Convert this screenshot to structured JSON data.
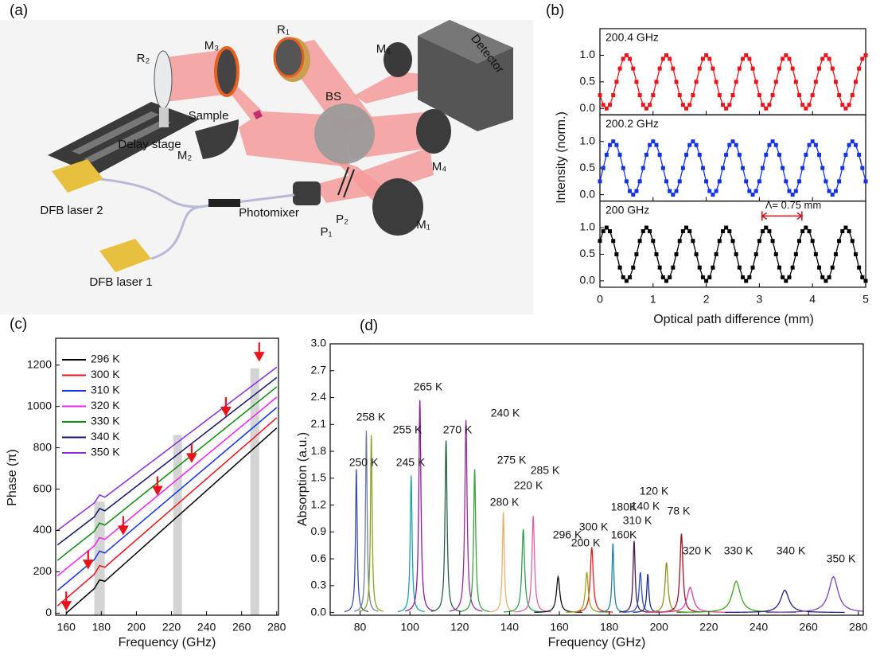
{
  "diagram": {
    "panel_label": "(a)",
    "labels": [
      "R₂",
      "M₃",
      "R₁",
      "M₅",
      "Detector",
      "BS",
      "Sample",
      "Delay stage",
      "M₂",
      "M₄",
      "DFB laser 2",
      "Photomixer",
      "P₁",
      "P₂",
      "M₁",
      "DFB laser 1"
    ]
  },
  "chart_data": [
    {
      "type": "line",
      "panel_label": "(b)",
      "x_label": "Optical path difference (mm)",
      "y_label": "Intensity (norm.)",
      "x": [
        0,
        0.0625,
        0.125,
        0.1875,
        0.25,
        0.3125,
        0.375,
        0.4375,
        0.5,
        0.5625,
        0.625,
        0.6875,
        0.75,
        0.8125,
        0.875,
        0.9375,
        1,
        1.0625,
        1.125,
        1.1875,
        1.25,
        1.3125,
        1.375,
        1.4375,
        1.5,
        1.5625,
        1.625,
        1.6875,
        1.75,
        1.8125,
        1.875,
        1.9375,
        2,
        2.0625,
        2.125,
        2.1875,
        2.25,
        2.3125,
        2.375,
        2.4375,
        2.5,
        2.5625,
        2.625,
        2.6875,
        2.75,
        2.8125,
        2.875,
        2.9375,
        3,
        3.0625,
        3.125,
        3.1875,
        3.25,
        3.3125,
        3.375,
        3.4375,
        3.5,
        3.5625,
        3.625,
        3.6875,
        3.75,
        3.8125,
        3.875,
        3.9375,
        4,
        4.0625,
        4.125,
        4.1875,
        4.25,
        4.3125,
        4.375,
        4.4375,
        4.5,
        4.5625,
        4.625,
        4.6875,
        4.75,
        4.8125,
        4.875,
        4.9375,
        5
      ],
      "xlim": [
        0,
        5
      ],
      "xticks": [
        0,
        1,
        2,
        3,
        4,
        5
      ],
      "ylim": [
        -0.12,
        1.5
      ],
      "yticks": [
        {
          "value": 0,
          "label": "0.0"
        },
        {
          "value": 0.5,
          "label": "0.5"
        },
        {
          "value": 1,
          "label": "1.0"
        }
      ],
      "series": [
        {
          "name": "200.4 GHz",
          "color": "#e8141b",
          "values": [
            0.25,
            0.067,
            0,
            0.067,
            0.25,
            0.5,
            0.75,
            0.933,
            1,
            0.933,
            0.75,
            0.5,
            0.25,
            0.067,
            0,
            0.067,
            0.25,
            0.5,
            0.75,
            0.933,
            1,
            0.933,
            0.75,
            0.5,
            0.25,
            0.067,
            0,
            0.067,
            0.25,
            0.5,
            0.75,
            0.933,
            1,
            0.933,
            0.75,
            0.5,
            0.25,
            0.067,
            0,
            0.067,
            0.25,
            0.5,
            0.75,
            0.933,
            1,
            0.933,
            0.75,
            0.5,
            0.25,
            0.067,
            0,
            0.067,
            0.25,
            0.5,
            0.75,
            0.933,
            1,
            0.933,
            0.75,
            0.5,
            0.25,
            0.067,
            0,
            0.067,
            0.25,
            0.5,
            0.75,
            0.933,
            1,
            0.933,
            0.75,
            0.5,
            0.25,
            0.067,
            0,
            0.067,
            0.25,
            0.5,
            0.75,
            0.933,
            1
          ]
        },
        {
          "name": "200.2 GHz",
          "color": "#1432e6",
          "values": [
            0.25,
            0.5,
            0.75,
            0.933,
            1,
            0.933,
            0.75,
            0.5,
            0.25,
            0.067,
            0,
            0.067,
            0.25,
            0.5,
            0.75,
            0.933,
            1,
            0.933,
            0.75,
            0.5,
            0.25,
            0.067,
            0,
            0.067,
            0.25,
            0.5,
            0.75,
            0.933,
            1,
            0.933,
            0.75,
            0.5,
            0.25,
            0.067,
            0,
            0.067,
            0.25,
            0.5,
            0.75,
            0.933,
            1,
            0.933,
            0.75,
            0.5,
            0.25,
            0.067,
            0,
            0.067,
            0.25,
            0.5,
            0.75,
            0.933,
            1,
            0.933,
            0.75,
            0.5,
            0.25,
            0.067,
            0,
            0.067,
            0.25,
            0.5,
            0.75,
            0.933,
            1,
            0.933,
            0.75,
            0.5,
            0.25,
            0.067,
            0,
            0.067,
            0.25,
            0.5,
            0.75,
            0.933,
            1,
            0.933,
            0.75,
            0.5,
            0.25
          ]
        },
        {
          "name": "200 GHz",
          "color": "#000000",
          "values": [
            0.75,
            0.933,
            1,
            0.933,
            0.75,
            0.5,
            0.25,
            0.067,
            0,
            0.067,
            0.25,
            0.5,
            0.75,
            0.933,
            1,
            0.933,
            0.75,
            0.5,
            0.25,
            0.067,
            0,
            0.067,
            0.25,
            0.5,
            0.75,
            0.933,
            1,
            0.933,
            0.75,
            0.5,
            0.25,
            0.067,
            0,
            0.067,
            0.25,
            0.5,
            0.75,
            0.933,
            1,
            0.933,
            0.75,
            0.5,
            0.25,
            0.067,
            0,
            0.067,
            0.25,
            0.5,
            0.75,
            0.933,
            1,
            0.933,
            0.75,
            0.5,
            0.25,
            0.067,
            0,
            0.067,
            0.25,
            0.5,
            0.75,
            0.933,
            1,
            0.933,
            0.75,
            0.5,
            0.25,
            0.067,
            0,
            0.067,
            0.25,
            0.5,
            0.75,
            0.933,
            1,
            0.933,
            0.75,
            0.5,
            0.25,
            0.067,
            0
          ]
        }
      ],
      "annotation": {
        "text": "Λ= 0.75 mm",
        "x": [
          3.05,
          3.8
        ],
        "y": 1.22,
        "color": "#c8141b"
      }
    },
    {
      "type": "line",
      "panel_label": "(c)",
      "x_label": "Frequency (GHz)",
      "y_label": "Phase (π)",
      "x": [
        155,
        160,
        176,
        179,
        182,
        280
      ],
      "xlim": [
        154,
        281
      ],
      "xticks": [
        160,
        180,
        200,
        220,
        240,
        260,
        280
      ],
      "ylim": [
        -10,
        1330
      ],
      "yticks": [
        0,
        200,
        400,
        600,
        800,
        1000,
        1200
      ],
      "legend": "top-left",
      "series": [
        {
          "name": "296 K",
          "color": "#000000",
          "values": [
            null,
            0,
            119,
            161,
            154,
            896
          ]
        },
        {
          "name": "300 K",
          "color": "#e8141b",
          "values": [
            35,
            71,
            188,
            230,
            222,
            945
          ]
        },
        {
          "name": "310 K",
          "color": "#1432e6",
          "values": [
            110,
            145,
            259,
            300,
            291,
            995
          ]
        },
        {
          "name": "320 K",
          "color": "#ee20ee",
          "values": [
            180,
            215,
            325,
            366,
            357,
            1045
          ]
        },
        {
          "name": "330 K",
          "color": "#0a8a0a",
          "values": [
            255,
            289,
            396,
            436,
            426,
            1095
          ]
        },
        {
          "name": "340 K",
          "color": "#101070",
          "values": [
            330,
            362,
            466,
            506,
            495,
            1140
          ]
        },
        {
          "name": "350 K",
          "color": "#8a2be2",
          "values": [
            400,
            432,
            533,
            572,
            561,
            1190
          ]
        }
      ],
      "shaded_bands": [
        {
          "x0": 176,
          "x1": 182,
          "top": 540
        },
        {
          "x0": 221,
          "x1": 226,
          "top": 862
        },
        {
          "x0": 265,
          "x1": 270,
          "top": 1185
        }
      ],
      "arrows": {
        "color": "#e8141b",
        "x": [
          160,
          172.5,
          192.5,
          212,
          231.5,
          251,
          270
        ],
        "y": [
          20,
          220,
          385,
          577,
          735,
          960,
          1225
        ]
      }
    },
    {
      "type": "peaks",
      "panel_label": "(d)",
      "x_label": "Frequency (GHz)",
      "y_label": "Absorption (a.u.)",
      "xlim": [
        68,
        282
      ],
      "xticks": [
        80,
        100,
        120,
        140,
        160,
        180,
        200,
        220,
        240,
        260,
        280
      ],
      "ylim": [
        -0.03,
        3.0
      ],
      "yticks": [
        {
          "value": 0,
          "label": "0.0"
        },
        {
          "value": 0.3,
          "label": "0.3"
        },
        {
          "value": 0.6,
          "label": "0.6"
        },
        {
          "value": 0.9,
          "label": "0.9"
        },
        {
          "value": 1.2,
          "label": "1.2"
        },
        {
          "value": 1.5,
          "label": "1.5"
        },
        {
          "value": 1.8,
          "label": "1.8"
        },
        {
          "value": 2.1,
          "label": "2.1"
        },
        {
          "value": 2.4,
          "label": "2.4"
        },
        {
          "value": 2.7,
          "label": "2.7"
        },
        {
          "value": 3.0,
          "label": "3.0"
        }
      ],
      "peaks": [
        {
          "label": "250 K",
          "center": 78.5,
          "height": 1.6,
          "fwhm": 0.8,
          "color": "#3a4fa8"
        },
        {
          "label": "258 K",
          "center": 82.5,
          "height": 2.03,
          "fwhm": 0.8,
          "color": "#6d7fa0"
        },
        {
          "label": "255 K",
          "center": 84.5,
          "height": 1.98,
          "fwhm": 0.8,
          "color": "#8aa020"
        },
        {
          "label": "245 K",
          "center": 100.5,
          "height": 1.53,
          "fwhm": 0.9,
          "color": "#1aa0a8"
        },
        {
          "label": "265 K",
          "center": 104,
          "height": 2.37,
          "fwhm": 1.0,
          "color": "#8a1a9a"
        },
        {
          "label": "270 K",
          "center": 114.5,
          "height": 1.92,
          "fwhm": 1.0,
          "color": "#2a6040"
        },
        {
          "label": "240 K",
          "center": 122.5,
          "height": 2.15,
          "fwhm": 1.1,
          "color": "#9a2a9a"
        },
        {
          "label": "275 K",
          "center": 126,
          "height": 1.6,
          "fwhm": 1.0,
          "color": "#3aa040"
        },
        {
          "label": "280 K",
          "center": 137.5,
          "height": 1.12,
          "fwhm": 0.9,
          "color": "#e8b070"
        },
        {
          "label": "220 K",
          "center": 145.5,
          "height": 0.93,
          "fwhm": 1.3,
          "color": "#30a050"
        },
        {
          "label": "285 K",
          "center": 149.5,
          "height": 1.08,
          "fwhm": 1.2,
          "color": "#e060a0"
        },
        {
          "label": "296 K",
          "center": 159.5,
          "height": 0.4,
          "fwhm": 1.6,
          "color": "#111111"
        },
        {
          "label": "300 K",
          "center": 173,
          "height": 0.73,
          "fwhm": 1.4,
          "color": "#e02020"
        },
        {
          "label": "200 K",
          "center": 171,
          "height": 0.45,
          "fwhm": 1.4,
          "color": "#a0a020"
        },
        {
          "label": "180K",
          "center": 181.5,
          "height": 0.77,
          "fwhm": 0.9,
          "color": "#2080a0"
        },
        {
          "label": "160K",
          "center": 190,
          "height": 0.8,
          "fwhm": 1.0,
          "color": "#4a1a4a"
        },
        {
          "label": "310 K",
          "center": 192.5,
          "height": 0.45,
          "fwhm": 1.2,
          "color": "#3050c0"
        },
        {
          "label": "140 K",
          "center": 195.5,
          "height": 0.43,
          "fwhm": 1.0,
          "color": "#1a2a8a"
        },
        {
          "label": "120 K",
          "center": 203,
          "height": 0.56,
          "fwhm": 1.4,
          "color": "#909020"
        },
        {
          "label": "78 K",
          "center": 209,
          "height": 0.88,
          "fwhm": 1.4,
          "color": "#a01020"
        },
        {
          "label": "320 K",
          "center": 212.5,
          "height": 0.28,
          "fwhm": 3,
          "color": "#e040a0"
        },
        {
          "label": "330 K",
          "center": 231,
          "height": 0.35,
          "fwhm": 4,
          "color": "#40a020"
        },
        {
          "label": "340 K",
          "center": 250.5,
          "height": 0.25,
          "fwhm": 4,
          "color": "#202080"
        },
        {
          "label": "350 K",
          "center": 270,
          "height": 0.4,
          "fwhm": 4.5,
          "color": "#8040c0"
        }
      ]
    }
  ]
}
